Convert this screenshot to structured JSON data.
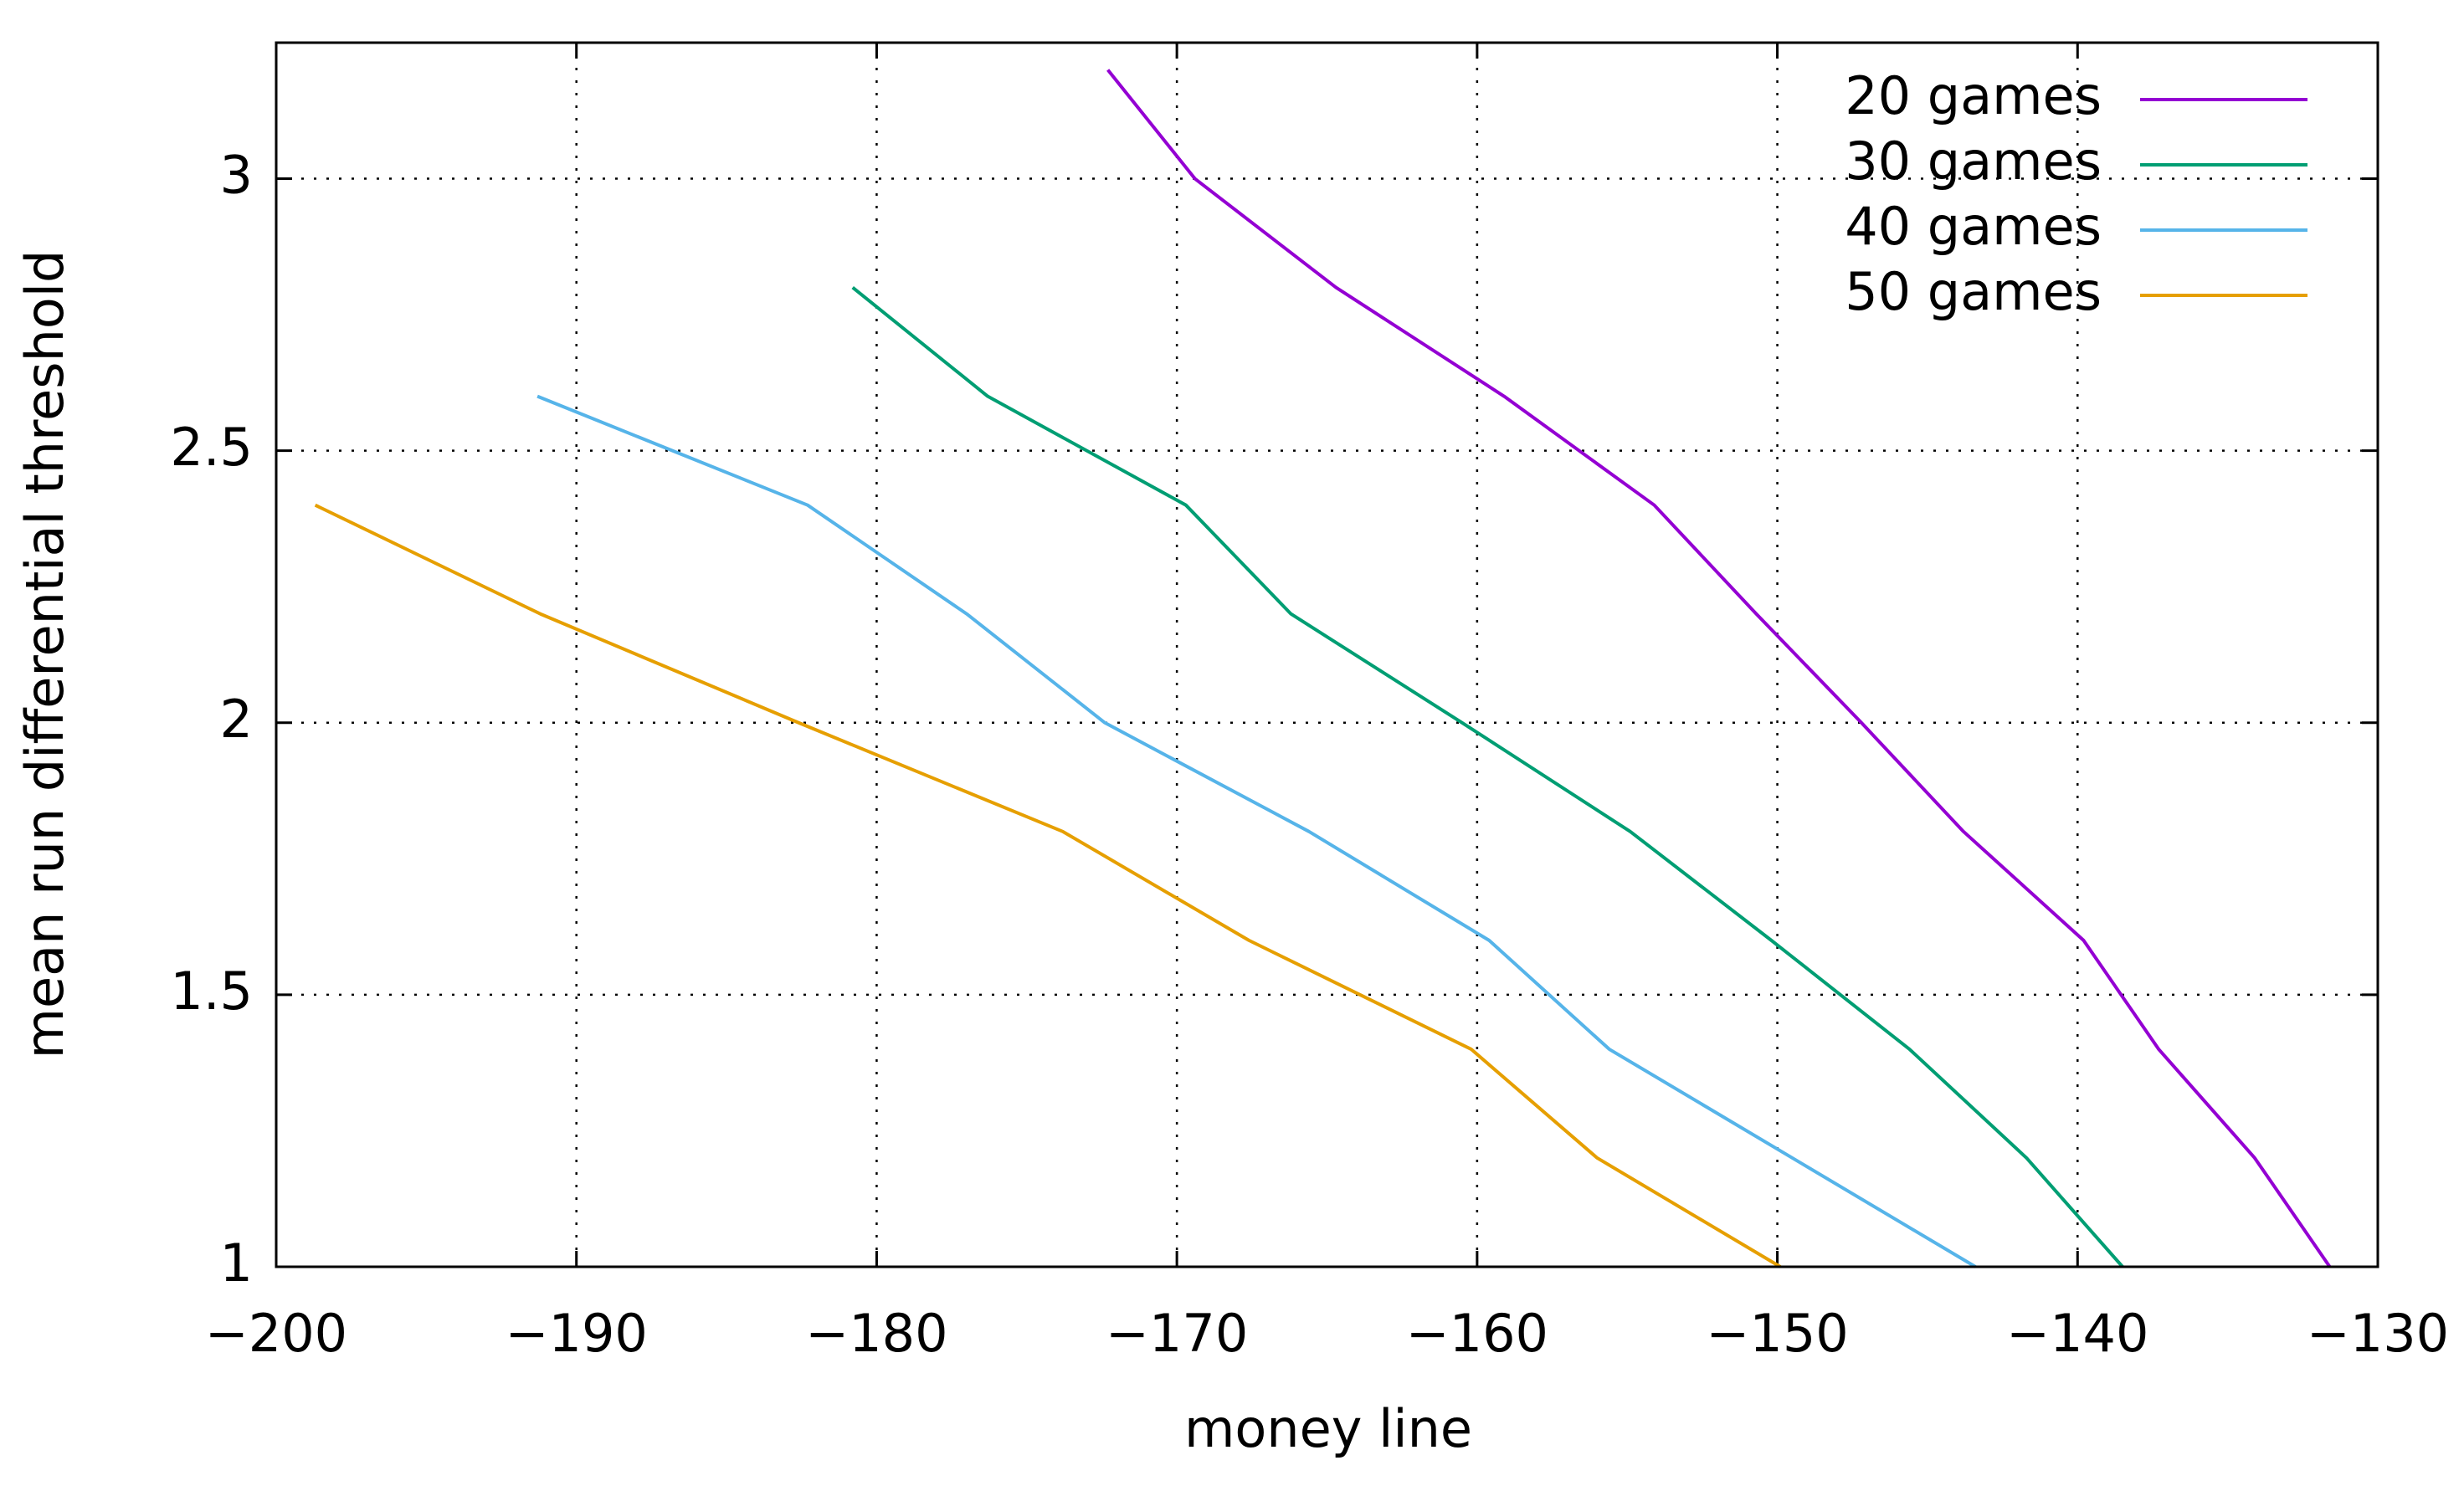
{
  "chart_data": {
    "type": "line",
    "xlabel": "money line",
    "ylabel": "mean run differential threshold",
    "xlim": [
      -200,
      -130
    ],
    "ylim": [
      1,
      3.25
    ],
    "xticks": [
      {
        "value": -200,
        "label": "−200"
      },
      {
        "value": -190,
        "label": "−190"
      },
      {
        "value": -180,
        "label": "−180"
      },
      {
        "value": -170,
        "label": "−170"
      },
      {
        "value": -160,
        "label": "−160"
      },
      {
        "value": -150,
        "label": "−150"
      },
      {
        "value": -140,
        "label": "−140"
      },
      {
        "value": -130,
        "label": "−130"
      }
    ],
    "yticks": [
      1,
      1.5,
      2,
      2.5,
      3
    ],
    "grid": true,
    "legend": "upper right",
    "series": [
      {
        "name": "20 games",
        "color": "#9400d3",
        "x": [
          -172.3,
          -169.4,
          -164.7,
          -159.1,
          -154.1,
          -150.7,
          -147.2,
          -143.8,
          -139.8,
          -137.3,
          -134.1,
          -131.6
        ],
        "values": [
          3.2,
          3.0,
          2.8,
          2.6,
          2.4,
          2.2,
          2.0,
          1.8,
          1.6,
          1.4,
          1.2,
          1.0
        ]
      },
      {
        "name": "30 games",
        "color": "#009e73",
        "x": [
          -180.8,
          -176.3,
          -169.7,
          -166.2,
          -160.5,
          -154.9,
          -150.2,
          -145.6,
          -141.7,
          -138.5
        ],
        "values": [
          2.8,
          2.6,
          2.4,
          2.2,
          2.0,
          1.8,
          1.6,
          1.4,
          1.2,
          1.0
        ]
      },
      {
        "name": "40 games",
        "color": "#56b4e9",
        "x": [
          -191.3,
          -182.3,
          -177.0,
          -172.4,
          -165.6,
          -159.6,
          -155.6,
          -149.5,
          -143.4
        ],
        "values": [
          2.6,
          2.4,
          2.2,
          2.0,
          1.8,
          1.6,
          1.4,
          1.2,
          1.0
        ]
      },
      {
        "name": "50 games",
        "color": "#e69f00",
        "x": [
          -198.7,
          -191.2,
          -182.6,
          -173.8,
          -167.6,
          -160.2,
          -156.0,
          -149.9
        ],
        "values": [
          2.4,
          2.2,
          2.0,
          1.8,
          1.6,
          1.4,
          1.2,
          1.0
        ]
      }
    ]
  }
}
